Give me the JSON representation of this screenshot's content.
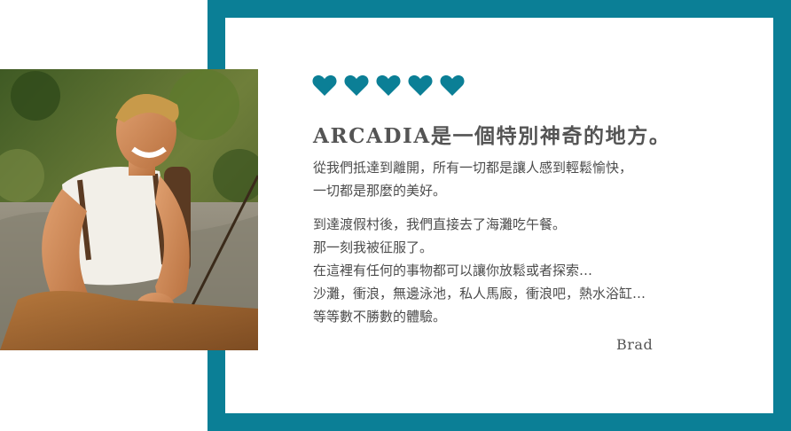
{
  "colors": {
    "accent": "#0b7f96",
    "heart": "#0b7f96",
    "text": "#4c4c4c"
  },
  "rating": {
    "icon": "heart-icon",
    "value": 5,
    "max": 5
  },
  "review": {
    "title": "ARCADIA是一個特別神奇的地方。",
    "paragraph1": [
      "從我們抵達到離開，所有一切都是讓人感到輕鬆愉快，",
      "一切都是那麼的美好。"
    ],
    "paragraph2": [
      "到達渡假村後，我們直接去了海灘吃午餐。",
      "那一刻我被征服了。",
      "在這裡有任何的事物都可以讓你放鬆或者探索…",
      "沙灘，衝浪，無邊泳池，私人馬廄，衝浪吧，熱水浴缸…",
      "等等數不勝數的體驗。"
    ],
    "author": "Brad"
  }
}
